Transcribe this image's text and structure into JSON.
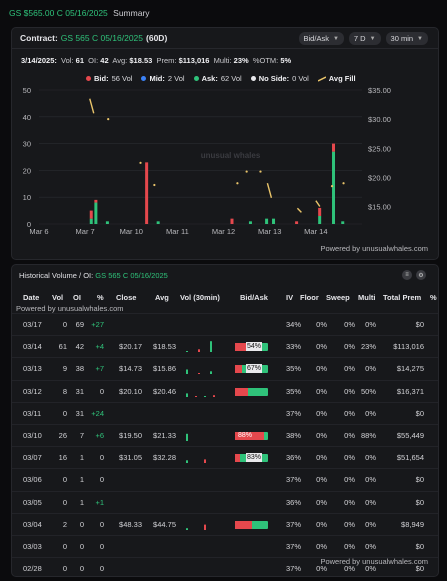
{
  "top": {
    "contract": "GS $565.00 C 05/16/2025",
    "label": "Summary"
  },
  "card1": {
    "contract_label": "Contract:",
    "contract_value": "GS 565 C 05/16/2025",
    "dte": "(60D)",
    "controls": [
      "Bid/Ask",
      "7 D",
      "30 min"
    ],
    "stats": {
      "date": "3/14/2025:",
      "vol_label": "Vol:",
      "vol": "61",
      "oi_label": "OI:",
      "oi": "42",
      "avg_label": "Avg:",
      "avg": "$18.53",
      "prem_label": "Prem:",
      "prem": "$113,016",
      "multi_label": "Multi:",
      "multi": "23%",
      "otm_label": "%OTM:",
      "otm": "5%"
    },
    "legend": [
      {
        "label": "Bid:",
        "value": "56 Vol",
        "color": "#e5484d"
      },
      {
        "label": "Mid:",
        "value": "2 Vol",
        "color": "#3b82f6"
      },
      {
        "label": "Ask:",
        "value": "62 Vol",
        "color": "#2fc27a"
      },
      {
        "label": "No Side:",
        "value": "0 Vol",
        "color": "#e8e8ec"
      },
      {
        "label": "Avg Fill",
        "value": "",
        "color": "#e9c46a"
      }
    ],
    "watermark": "unusual whales",
    "powered": "Powered by unusualwhales.com"
  },
  "chart_data": {
    "type": "bar",
    "x_tick_labels": [
      "Mar 6",
      "Mar 7",
      "Mar 10",
      "Mar 11",
      "Mar 12",
      "Mar 13",
      "Mar 14"
    ],
    "y_left_ticks": [
      "0",
      "10",
      "20",
      "30",
      "40",
      "50"
    ],
    "y_right_ticks": [
      "$15.00",
      "$20.00",
      "$25.00",
      "$30.00",
      "$35.00"
    ],
    "ylim_volume": [
      0,
      50
    ],
    "ylim_price": [
      12,
      35
    ],
    "volume_bars": [
      {
        "day": "Mar 7",
        "slot": 0.1,
        "bid": 3,
        "ask": 2
      },
      {
        "day": "Mar 7",
        "slot": 0.2,
        "bid": 1,
        "ask": 8
      },
      {
        "day": "Mar 7",
        "slot": 0.45,
        "bid": 0,
        "ask": 1
      },
      {
        "day": "Mar 10",
        "slot": 0.3,
        "bid": 23,
        "ask": 0
      },
      {
        "day": "Mar 10",
        "slot": 0.55,
        "bid": 0,
        "ask": 1
      },
      {
        "day": "Mar 12",
        "slot": 0.15,
        "bid": 2,
        "ask": 0
      },
      {
        "day": "Mar 12",
        "slot": 0.55,
        "bid": 0,
        "ask": 1
      },
      {
        "day": "Mar 12",
        "slot": 0.9,
        "bid": 0,
        "ask": 2
      },
      {
        "day": "Mar 13",
        "slot": 0.05,
        "bid": 0,
        "ask": 2
      },
      {
        "day": "Mar 13",
        "slot": 0.55,
        "bid": 1,
        "ask": 0
      },
      {
        "day": "Mar 14",
        "slot": 0.05,
        "bid": 3,
        "ask": 3
      },
      {
        "day": "Mar 14",
        "slot": 0.35,
        "bid": 3,
        "ask": 27
      },
      {
        "day": "Mar 14",
        "slot": 0.55,
        "bid": 0,
        "ask": 1
      }
    ],
    "avg_fill_marks": [
      {
        "day": "Mar 7",
        "slot": 0.1,
        "price": 33.5,
        "segment": [
          33.5,
          31
        ]
      },
      {
        "day": "Mar 7",
        "slot": 0.5,
        "price": 30.0
      },
      {
        "day": "Mar 10",
        "slot": 0.2,
        "price": 22.5
      },
      {
        "day": "Mar 10",
        "slot": 0.5,
        "price": 18.7
      },
      {
        "day": "Mar 12",
        "slot": 0.3,
        "price": 19.0
      },
      {
        "day": "Mar 12",
        "slot": 0.5,
        "price": 21.0
      },
      {
        "day": "Mar 12",
        "slot": 0.8,
        "price": 21.0
      },
      {
        "day": "Mar 12",
        "slot": 0.95,
        "price": 19.0,
        "segment": [
          19.0,
          16.5
        ]
      },
      {
        "day": "Mar 13",
        "slot": 0.6,
        "price": 14.7,
        "segment": [
          14.7,
          14.0
        ]
      },
      {
        "day": "Mar 14",
        "slot": 0.0,
        "price": 16.0,
        "segment": [
          16.0,
          15.0
        ]
      },
      {
        "day": "Mar 14",
        "slot": 0.35,
        "price": 18.5
      },
      {
        "day": "Mar 14",
        "slot": 0.6,
        "price": 19.0
      }
    ]
  },
  "card2": {
    "title": "Historical Volume / OI:",
    "title_value": "GS 565 C 05/16/2025",
    "powered": "Powered by unusualwhales.com",
    "columns": [
      "Date",
      "Vol",
      "OI",
      "%",
      "Close",
      "Avg",
      "Vol (30min)",
      "Bid/Ask",
      "IV",
      "Floor",
      "Sweep",
      "Multi",
      "Total Prem",
      "%"
    ],
    "rows": [
      {
        "date": "03/17",
        "vol": "0",
        "oi": "69",
        "chg": "+27",
        "close": "",
        "avg": "",
        "ba": null,
        "iv": "34%",
        "floor": "0%",
        "sweep": "0%",
        "multi": "0%",
        "prem": "$0",
        "spark": []
      },
      {
        "date": "03/14",
        "vol": "61",
        "oi": "42",
        "chg": "+4",
        "close": "$20.17",
        "avg": "$18.53",
        "ba": {
          "bid": 0.36,
          "label": "54%"
        },
        "iv": "33%",
        "floor": "0%",
        "sweep": "0%",
        "multi": "23%",
        "prem": "$113,016",
        "spark": [
          1,
          3,
          12
        ]
      },
      {
        "date": "03/13",
        "vol": "9",
        "oi": "38",
        "chg": "+7",
        "close": "$14.73",
        "avg": "$15.86",
        "ba": {
          "bid": 0.2,
          "label": "67%"
        },
        "iv": "35%",
        "floor": "0%",
        "sweep": "0%",
        "multi": "0%",
        "prem": "$14,275",
        "spark": [
          5,
          1,
          3
        ]
      },
      {
        "date": "03/12",
        "vol": "8",
        "oi": "31",
        "chg": "0",
        "close": "$20.10",
        "avg": "$20.46",
        "ba": {
          "bid": 0.4,
          "label": ""
        },
        "iv": "35%",
        "floor": "0%",
        "sweep": "0%",
        "multi": "50%",
        "prem": "$16,371",
        "spark": [
          4,
          1,
          1,
          2
        ]
      },
      {
        "date": "03/11",
        "vol": "0",
        "oi": "31",
        "chg": "+24",
        "close": "",
        "avg": "",
        "ba": null,
        "iv": "37%",
        "floor": "0%",
        "sweep": "0%",
        "multi": "0%",
        "prem": "$0",
        "spark": []
      },
      {
        "date": "03/10",
        "vol": "26",
        "oi": "7",
        "chg": "+6",
        "close": "$19.50",
        "avg": "$21.33",
        "ba": {
          "bid": 0.88,
          "label": "88%"
        },
        "iv": "38%",
        "floor": "0%",
        "sweep": "0%",
        "multi": "88%",
        "prem": "$55,449",
        "spark": [
          8
        ]
      },
      {
        "date": "03/07",
        "vol": "16",
        "oi": "1",
        "chg": "0",
        "close": "$31.05",
        "avg": "$32.28",
        "ba": {
          "bid": 0.15,
          "label": "83%"
        },
        "iv": "36%",
        "floor": "0%",
        "sweep": "0%",
        "multi": "0%",
        "prem": "$51,654",
        "spark": [
          3,
          4
        ]
      },
      {
        "date": "03/06",
        "vol": "0",
        "oi": "1",
        "chg": "0",
        "close": "",
        "avg": "",
        "ba": null,
        "iv": "37%",
        "floor": "0%",
        "sweep": "0%",
        "multi": "0%",
        "prem": "$0",
        "spark": []
      },
      {
        "date": "03/05",
        "vol": "0",
        "oi": "1",
        "chg": "+1",
        "close": "",
        "avg": "",
        "ba": null,
        "iv": "36%",
        "floor": "0%",
        "sweep": "0%",
        "multi": "0%",
        "prem": "$0",
        "spark": []
      },
      {
        "date": "03/04",
        "vol": "2",
        "oi": "0",
        "chg": "0",
        "close": "$48.33",
        "avg": "$44.75",
        "ba": {
          "bid": 0.5,
          "label": ""
        },
        "iv": "37%",
        "floor": "0%",
        "sweep": "0%",
        "multi": "0%",
        "prem": "$8,949",
        "spark": [
          2,
          6
        ]
      },
      {
        "date": "03/03",
        "vol": "0",
        "oi": "0",
        "chg": "0",
        "close": "",
        "avg": "",
        "ba": null,
        "iv": "37%",
        "floor": "0%",
        "sweep": "0%",
        "multi": "0%",
        "prem": "$0",
        "spark": []
      },
      {
        "date": "02/28",
        "vol": "0",
        "oi": "0",
        "chg": "0",
        "close": "",
        "avg": "",
        "ba": null,
        "iv": "37%",
        "floor": "0%",
        "sweep": "0%",
        "multi": "0%",
        "prem": "$0",
        "spark": []
      }
    ]
  }
}
